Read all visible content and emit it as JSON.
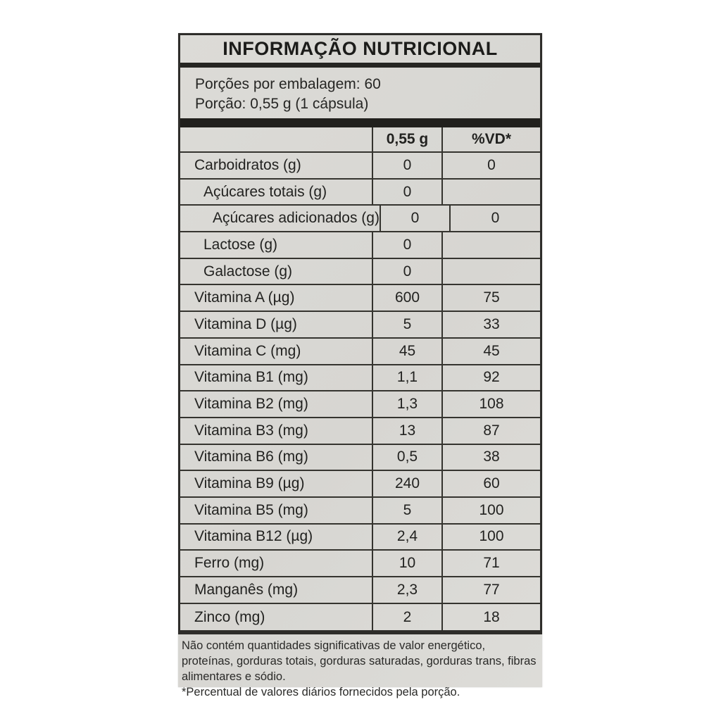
{
  "label": {
    "title": "INFORMAÇÃO NUTRICIONAL",
    "servings_per_package": "Porções por embalagem: 60",
    "serving_size": "Porção: 0,55 g (1 cápsula)",
    "table": {
      "columns": [
        "",
        "0,55 g",
        "%VD*"
      ],
      "rows": [
        {
          "name": "Carboidratos (g)",
          "amount": "0",
          "vd": "0",
          "indent": 0
        },
        {
          "name": "Açúcares totais (g)",
          "amount": "0",
          "vd": "",
          "indent": 1
        },
        {
          "name": "Açúcares adicionados (g)",
          "amount": "0",
          "vd": "0",
          "indent": 2
        },
        {
          "name": "Lactose (g)",
          "amount": "0",
          "vd": "",
          "indent": 1
        },
        {
          "name": "Galactose (g)",
          "amount": "0",
          "vd": "",
          "indent": 1
        },
        {
          "name": "Vitamina A (µg)",
          "amount": "600",
          "vd": "75",
          "indent": 0
        },
        {
          "name": "Vitamina D (µg)",
          "amount": "5",
          "vd": "33",
          "indent": 0
        },
        {
          "name": "Vitamina C (mg)",
          "amount": "45",
          "vd": "45",
          "indent": 0
        },
        {
          "name": "Vitamina B1 (mg)",
          "amount": "1,1",
          "vd": "92",
          "indent": 0
        },
        {
          "name": "Vitamina B2 (mg)",
          "amount": "1,3",
          "vd": "108",
          "indent": 0
        },
        {
          "name": "Vitamina B3 (mg)",
          "amount": "13",
          "vd": "87",
          "indent": 0
        },
        {
          "name": "Vitamina B6 (mg)",
          "amount": "0,5",
          "vd": "38",
          "indent": 0
        },
        {
          "name": "Vitamina B9 (µg)",
          "amount": "240",
          "vd": "60",
          "indent": 0
        },
        {
          "name": "Vitamina B5 (mg)",
          "amount": "5",
          "vd": "100",
          "indent": 0
        },
        {
          "name": "Vitamina B12 (µg)",
          "amount": "2,4",
          "vd": "100",
          "indent": 0
        },
        {
          "name": "Ferro (mg)",
          "amount": "10",
          "vd": "71",
          "indent": 0
        },
        {
          "name": "Manganês (mg)",
          "amount": "2,3",
          "vd": "77",
          "indent": 0
        },
        {
          "name": "Zinco (mg)",
          "amount": "2",
          "vd": "18",
          "indent": 0
        }
      ]
    },
    "footnotes": [
      "Não contém quantidades significativas de valor energético, proteínas, gorduras totais, gorduras saturadas, gorduras trans, fibras alimentares e sódio.",
      "*Percentual de valores diários fornecidos pela porção."
    ],
    "colors": {
      "label_background": "#d9d8d4",
      "border": "#2e2d2a",
      "text": "#222220"
    }
  }
}
